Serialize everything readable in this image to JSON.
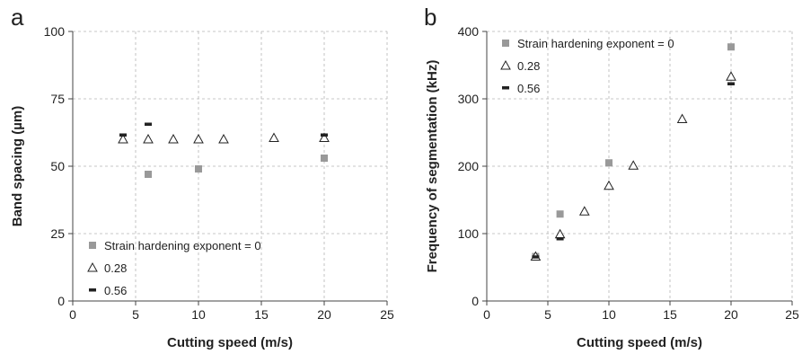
{
  "chart_data": [
    {
      "panel_label": "a",
      "type": "scatter",
      "title": "",
      "xlabel": "Cutting speed (m/s)",
      "ylabel": "Band spacing (µm)",
      "xlim": [
        0,
        25
      ],
      "ylim": [
        0,
        100
      ],
      "xticks": [
        0,
        5,
        10,
        15,
        20,
        25
      ],
      "yticks": [
        0,
        25,
        50,
        75,
        100
      ],
      "grid": true,
      "legend_position": "bottom-left",
      "series": [
        {
          "name": "Strain hardening exponent = 0",
          "marker": "square",
          "color": "#999999",
          "x": [
            6,
            10,
            20
          ],
          "y": [
            47,
            49,
            53
          ]
        },
        {
          "name": "0.28",
          "marker": "triangle",
          "color": "#222222",
          "x": [
            4,
            6,
            8,
            10,
            12,
            16,
            20
          ],
          "y": [
            60,
            60,
            60,
            60,
            60,
            60.5,
            60.5
          ]
        },
        {
          "name": "0.56",
          "marker": "dash",
          "color": "#222222",
          "x": [
            4,
            6,
            20
          ],
          "y": [
            61.5,
            65.5,
            61.5
          ]
        }
      ]
    },
    {
      "panel_label": "b",
      "type": "scatter",
      "title": "",
      "xlabel": "Cutting speed (m/s)",
      "ylabel": "Frequency of segmentation (kHz)",
      "xlim": [
        0,
        25
      ],
      "ylim": [
        0,
        400
      ],
      "xticks": [
        0,
        5,
        10,
        15,
        20,
        25
      ],
      "yticks": [
        0,
        100,
        200,
        300,
        400
      ],
      "grid": true,
      "legend_position": "top-left",
      "series": [
        {
          "name": "Strain hardening exponent = 0",
          "marker": "square",
          "color": "#999999",
          "x": [
            4,
            6,
            10,
            20
          ],
          "y": [
            66,
            129,
            205,
            377
          ]
        },
        {
          "name": "0.28",
          "marker": "triangle",
          "color": "#222222",
          "x": [
            4,
            6,
            8,
            10,
            12,
            16,
            20
          ],
          "y": [
            66,
            99,
            133,
            171,
            201,
            270,
            333
          ]
        },
        {
          "name": "0.56",
          "marker": "dash",
          "color": "#222222",
          "x": [
            4,
            6,
            20
          ],
          "y": [
            65,
            92,
            322
          ]
        }
      ]
    }
  ]
}
